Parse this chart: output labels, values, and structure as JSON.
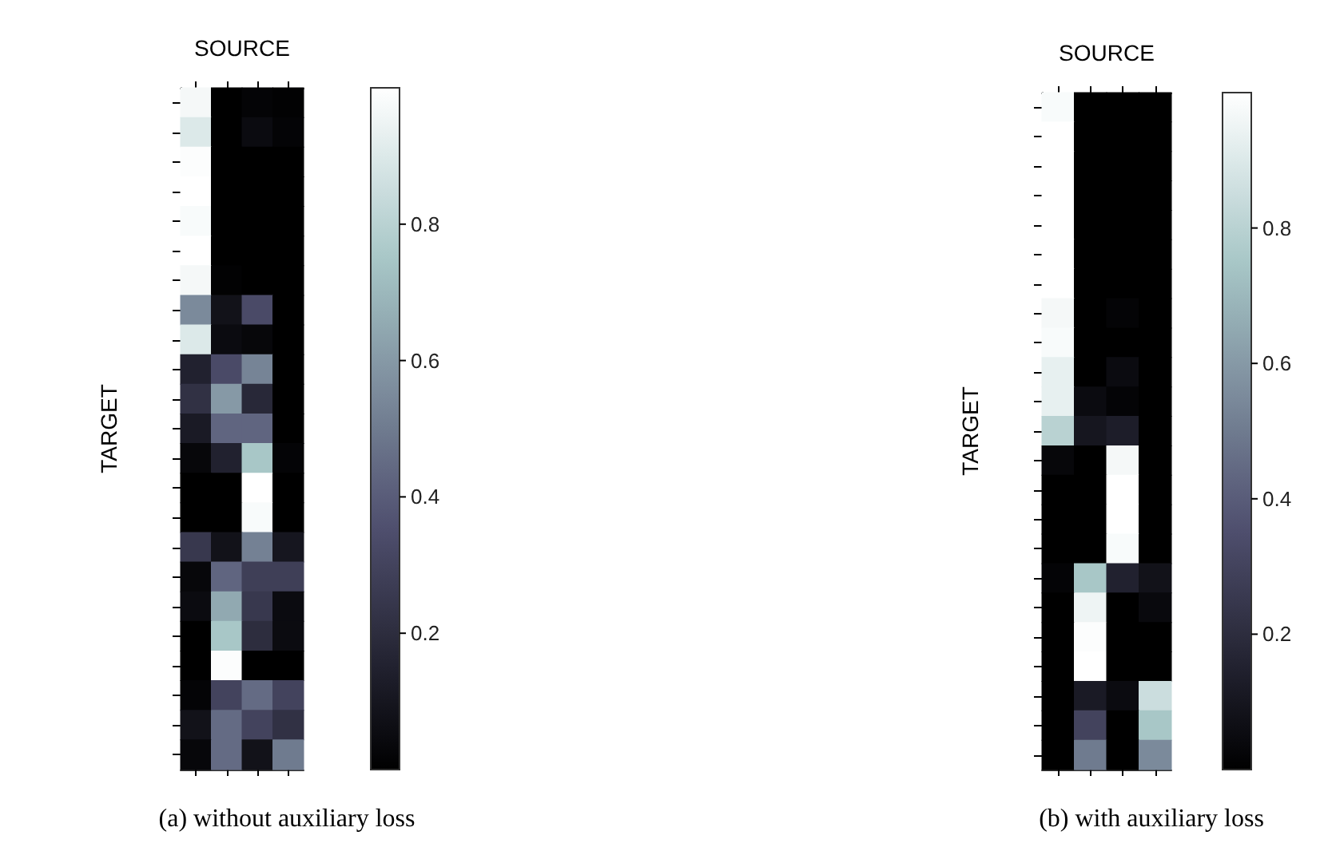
{
  "chart_data": [
    {
      "type": "heatmap",
      "xlabel": "SOURCE",
      "ylabel": "TARGET",
      "annotations": [
        "(a) without auxiliary loss"
      ],
      "categories": [
        null,
        null,
        null,
        null
      ],
      "y_categories": [
        null,
        null,
        null,
        null,
        null,
        null,
        null,
        null,
        null,
        null,
        null,
        null,
        null,
        null,
        null,
        null,
        null,
        null,
        null,
        null,
        null,
        null,
        null
      ],
      "cells": [
        [
          0.97,
          0,
          0.02,
          0.01
        ],
        [
          0.9,
          0,
          0.05,
          0.02
        ],
        [
          0.99,
          0,
          0,
          0
        ],
        [
          1,
          0,
          0,
          0
        ],
        [
          0.98,
          0,
          0,
          0
        ],
        [
          1,
          0,
          0,
          0
        ],
        [
          0.97,
          0.01,
          0,
          0
        ],
        [
          0.55,
          0.08,
          0.33,
          0
        ],
        [
          0.9,
          0.05,
          0.03,
          0
        ],
        [
          0.15,
          0.33,
          0.53,
          0
        ],
        [
          0.22,
          0.6,
          0.18,
          0
        ],
        [
          0.12,
          0.43,
          0.43,
          0
        ],
        [
          0.03,
          0.15,
          0.75,
          0.02
        ],
        [
          0,
          0,
          1,
          0
        ],
        [
          0,
          0,
          0.98,
          0
        ],
        [
          0.25,
          0.08,
          0.52,
          0.1
        ],
        [
          0.03,
          0.43,
          0.28,
          0.28
        ],
        [
          0.05,
          0.65,
          0.25,
          0.05
        ],
        [
          0,
          0.75,
          0.2,
          0.05
        ],
        [
          0,
          0.99,
          0,
          0
        ],
        [
          0.02,
          0.3,
          0.45,
          0.3
        ],
        [
          0.08,
          0.45,
          0.3,
          0.22
        ],
        [
          0.03,
          0.45,
          0.08,
          0.5
        ]
      ],
      "clim": [
        0,
        1
      ],
      "cticks": [
        0.2,
        0.4,
        0.6,
        0.8
      ]
    },
    {
      "type": "heatmap",
      "xlabel": "SOURCE",
      "ylabel": "TARGET",
      "annotations": [
        "(b) with auxiliary loss"
      ],
      "categories": [
        null,
        null,
        null,
        null
      ],
      "y_categories": [
        null,
        null,
        null,
        null,
        null,
        null,
        null,
        null,
        null,
        null,
        null,
        null,
        null,
        null,
        null,
        null,
        null,
        null,
        null,
        null,
        null,
        null,
        null
      ],
      "cells": [
        [
          0.98,
          0,
          0,
          0
        ],
        [
          1,
          0,
          0,
          0
        ],
        [
          1,
          0,
          0,
          0
        ],
        [
          1,
          0,
          0,
          0
        ],
        [
          1,
          0,
          0,
          0
        ],
        [
          1,
          0,
          0,
          0
        ],
        [
          1,
          0,
          0,
          0
        ],
        [
          0.97,
          0,
          0.02,
          0
        ],
        [
          0.98,
          0,
          0,
          0
        ],
        [
          0.93,
          0,
          0.05,
          0
        ],
        [
          0.93,
          0.05,
          0.02,
          0
        ],
        [
          0.8,
          0.1,
          0.13,
          0
        ],
        [
          0.03,
          0,
          0.97,
          0
        ],
        [
          0,
          0,
          1,
          0
        ],
        [
          0,
          0,
          1,
          0
        ],
        [
          0,
          0,
          0.98,
          0
        ],
        [
          0.02,
          0.75,
          0.15,
          0.08
        ],
        [
          0,
          0.95,
          0,
          0.04
        ],
        [
          0,
          0.99,
          0,
          0
        ],
        [
          0,
          1,
          0,
          0
        ],
        [
          0,
          0.12,
          0.05,
          0.85
        ],
        [
          0,
          0.3,
          0,
          0.75
        ],
        [
          0,
          0.5,
          0,
          0.55
        ]
      ],
      "clim": [
        0,
        1
      ],
      "cticks": [
        0.2,
        0.4,
        0.6,
        0.8
      ]
    }
  ]
}
